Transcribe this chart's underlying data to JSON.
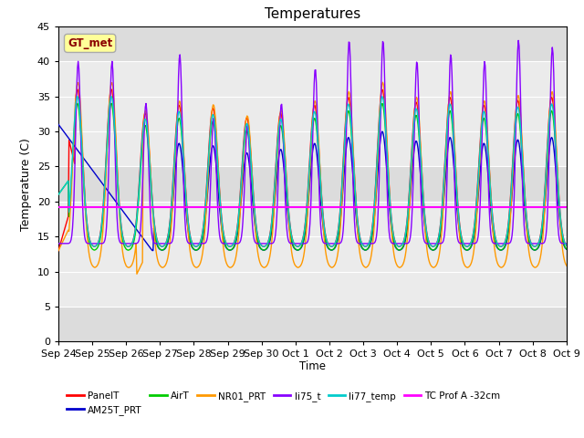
{
  "title": "Temperatures",
  "ylabel": "Temperature (C)",
  "xlabel": "Time",
  "ylim": [
    0,
    45
  ],
  "yticks": [
    0,
    5,
    10,
    15,
    20,
    25,
    30,
    35,
    40,
    45
  ],
  "series_colors": {
    "PanelT": "#ff0000",
    "AM25T_PRT": "#0000cc",
    "AirT": "#00cc00",
    "NR01_PRT": "#ff9900",
    "li75_t": "#8800ff",
    "li77_temp": "#00cccc",
    "TC Prof A -32cm": "#ff00ff"
  },
  "gt_met_box_color": "#ffff99",
  "gt_met_text_color": "#8b0000",
  "gt_met_border_color": "#aaaaaa",
  "plot_bg_color": "#ebebeb",
  "tc_prof_value": 19.2,
  "tick_labels": [
    "Sep 24",
    "Sep 25",
    "Sep 26",
    "Sep 27",
    "Sep 28",
    "Sep 29",
    "Sep 30",
    "Oct 1",
    "Oct 2",
    "Oct 3",
    "Oct 4",
    "Oct 5",
    "Oct 6",
    "Oct 7",
    "Oct 8",
    "Oct 9"
  ]
}
